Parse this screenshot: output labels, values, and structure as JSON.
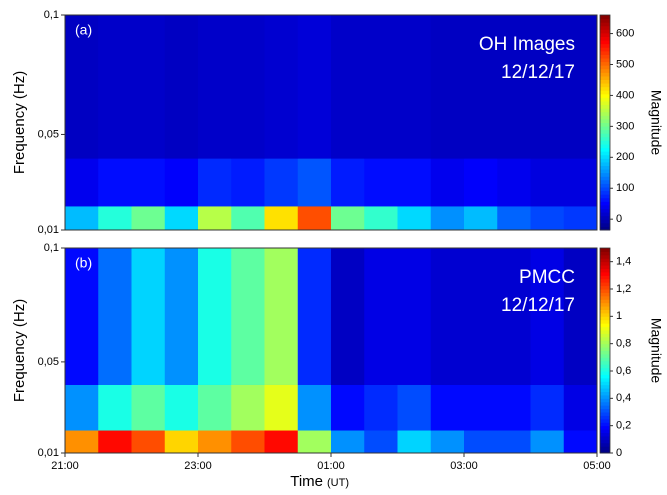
{
  "chart_data": [
    {
      "type": "heatmap",
      "panel_label": "(a)",
      "title": "OH Images",
      "subtitle": "12/12/17",
      "ylabel": "Frequency (Hz)",
      "colorbar_label": "Magnitude",
      "colormap": "jet",
      "xlim": [
        0,
        8
      ],
      "ylim": [
        0.01,
        0.1
      ],
      "yticks": [
        {
          "value": 0.01,
          "label": "0,01"
        },
        {
          "value": 0.05,
          "label": "0,05"
        },
        {
          "value": 0.1,
          "label": "0,1"
        }
      ],
      "x_edges": [
        0,
        0.5,
        1,
        1.5,
        2,
        2.5,
        3,
        3.5,
        4,
        4.5,
        5,
        5.5,
        6,
        6.5,
        7,
        7.5,
        8
      ],
      "y_edges": [
        0.01,
        0.02,
        0.04,
        0.1
      ],
      "z": [
        [
          180,
          250,
          300,
          200,
          350,
          280,
          420,
          520,
          300,
          260,
          200,
          150,
          180,
          120,
          100,
          90
        ],
        [
          40,
          60,
          60,
          50,
          80,
          70,
          90,
          110,
          70,
          60,
          60,
          40,
          50,
          40,
          30,
          30
        ],
        [
          10,
          15,
          15,
          10,
          15,
          15,
          20,
          25,
          15,
          15,
          15,
          10,
          10,
          10,
          10,
          10
        ]
      ],
      "clim": [
        -35,
        660
      ],
      "cticks": [
        0,
        100,
        200,
        300,
        400,
        500,
        600
      ]
    },
    {
      "type": "heatmap",
      "panel_label": "(b)",
      "title": "PMCC",
      "subtitle": "12/12/17",
      "ylabel": "Frequency (Hz)",
      "colorbar_label": "Magnitude",
      "colormap": "jet",
      "xlabel": "Time",
      "xlabel_unit": "(UT)",
      "xlim": [
        0,
        8
      ],
      "ylim": [
        0.01,
        0.1
      ],
      "xticks": [
        {
          "value": 0,
          "label": "21:00"
        },
        {
          "value": 2,
          "label": "23:00"
        },
        {
          "value": 4,
          "label": "01:00"
        },
        {
          "value": 6,
          "label": "03:00"
        },
        {
          "value": 8,
          "label": "05:00"
        }
      ],
      "yticks": [
        {
          "value": 0.01,
          "label": "0,01"
        },
        {
          "value": 0.05,
          "label": "0,05"
        },
        {
          "value": 0.1,
          "label": "0,1"
        }
      ],
      "x_edges": [
        0,
        0.5,
        1,
        1.5,
        2,
        2.5,
        3,
        3.5,
        4,
        4.5,
        5,
        5.5,
        6,
        6.5,
        7,
        7.5,
        8
      ],
      "y_edges": [
        0.01,
        0.02,
        0.04,
        0.1
      ],
      "z": [
        [
          1.1,
          1.3,
          1.2,
          1.0,
          1.1,
          1.2,
          1.3,
          0.8,
          0.4,
          0.3,
          0.5,
          0.4,
          0.3,
          0.3,
          0.4,
          0.2
        ],
        [
          0.4,
          0.6,
          0.7,
          0.6,
          0.7,
          0.8,
          0.9,
          0.4,
          0.2,
          0.25,
          0.3,
          0.2,
          0.2,
          0.2,
          0.25,
          0.15
        ],
        [
          0.2,
          0.35,
          0.5,
          0.4,
          0.6,
          0.7,
          0.8,
          0.25,
          0.1,
          0.15,
          0.15,
          0.12,
          0.12,
          0.12,
          0.15,
          0.1
        ]
      ],
      "clim": [
        0,
        1.5
      ],
      "cticks": [
        0,
        {
          "value": 0.2,
          "label": "0,2"
        },
        {
          "value": 0.4,
          "label": "0,4"
        },
        {
          "value": 0.6,
          "label": "0,6"
        },
        {
          "value": 0.8,
          "label": "0,8"
        },
        1,
        {
          "value": 1.2,
          "label": "1,2"
        },
        {
          "value": 1.4,
          "label": "1,4"
        }
      ]
    }
  ]
}
